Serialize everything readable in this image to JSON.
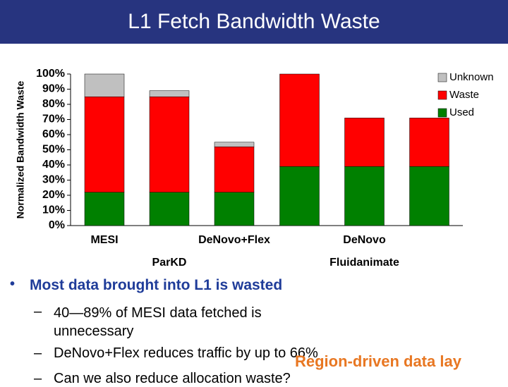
{
  "slide": {
    "title": "L1 Fetch Bandwidth Waste",
    "bullet": "Most data brought into L1 is wasted",
    "sub_bullets": [
      "40—89% of MESI data fetched is unnecessary",
      "DeNovo+Flex reduces traffic by up to 66%",
      "Can we also reduce allocation waste?"
    ],
    "overlay": "Region-driven data lay"
  },
  "chart_data": {
    "type": "bar",
    "stacked": true,
    "y_label": "Normalized Bandwidth Waste",
    "categories": [
      "MESI",
      null,
      "DeNovo+Flex",
      null,
      "DeNovo",
      null
    ],
    "group_categories": [
      null,
      "ParKD",
      null,
      null,
      "Fluidanimate",
      null
    ],
    "series": [
      {
        "name": "Used",
        "color": "#008000",
        "values": [
          22,
          22,
          22,
          39,
          39,
          39
        ]
      },
      {
        "name": "Waste",
        "color": "#ff0000",
        "values": [
          63,
          63,
          30,
          61,
          32,
          32
        ]
      },
      {
        "name": "Unknown",
        "color": "#c0c0c0",
        "values": [
          15,
          4,
          3,
          0,
          0,
          0
        ]
      }
    ],
    "ylim": [
      0,
      100
    ],
    "yticks": [
      {
        "value": 0,
        "label": "0%"
      },
      {
        "value": 10,
        "label": "10%"
      },
      {
        "value": 20,
        "label": "20%"
      },
      {
        "value": 30,
        "label": "30%"
      },
      {
        "value": 40,
        "label": "40%"
      },
      {
        "value": 50,
        "label": "50%"
      },
      {
        "value": 60,
        "label": "60%"
      },
      {
        "value": 70,
        "label": "70%"
      },
      {
        "value": 80,
        "label": "80%"
      },
      {
        "value": 90,
        "label": "90%"
      },
      {
        "value": 100,
        "label": "100%"
      }
    ],
    "legend": "upper right"
  }
}
